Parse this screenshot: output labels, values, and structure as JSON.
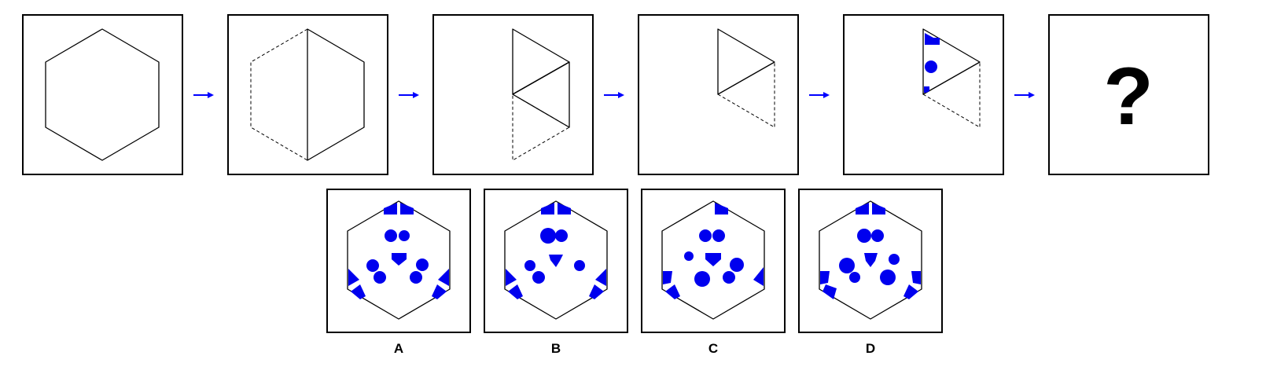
{
  "puzzle": {
    "question_mark": "?",
    "options": [
      {
        "label": "A"
      },
      {
        "label": "B"
      },
      {
        "label": "C"
      },
      {
        "label": "D"
      }
    ]
  },
  "colors": {
    "hexagon_fill": "#d0d0d0",
    "folded_fill": "#a0a0a0",
    "punch_blue": "#0000ee",
    "arrow_blue": "#0000ff",
    "outline": "#000000"
  }
}
